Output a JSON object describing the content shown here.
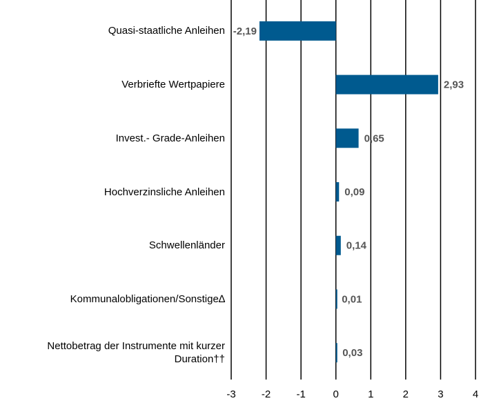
{
  "chart_data": {
    "type": "bar",
    "orientation": "horizontal",
    "categories": [
      "Quasi-staatliche Anleihen",
      "Verbriefte Wertpapiere",
      "Invest.- Grade-Anleihen",
      "Hochverzinsliche Anleihen",
      "Schwellenländer",
      "Kommunalobligationen/Sonstige∆",
      "Nettobetrag der Instrumente mit kurzer Duration††"
    ],
    "values": [
      -2.19,
      2.93,
      0.65,
      0.09,
      0.14,
      0.01,
      0.03
    ],
    "value_labels": [
      "-2,19",
      "2,93",
      "0,65",
      "0,09",
      "0,14",
      "0,01",
      "0,03"
    ],
    "color": "#005a8f",
    "xlim": [
      -3,
      4
    ],
    "xticks": [
      -3,
      -2,
      -1,
      0,
      1,
      2,
      3,
      4
    ],
    "grid": true
  }
}
